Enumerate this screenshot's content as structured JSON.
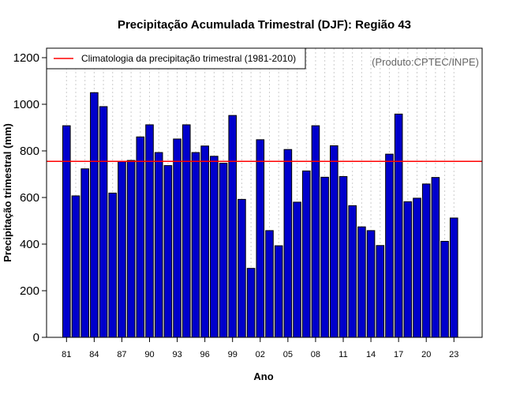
{
  "chart_data": {
    "type": "bar",
    "title": "Precipitação Acumulada Trimestral (DJF): Região 43",
    "xlabel": "Ano",
    "ylabel": "Precipitação trimestral (mm)",
    "ylim": [
      0,
      1260
    ],
    "yticks": [
      0,
      200,
      400,
      600,
      800,
      1000,
      1200
    ],
    "categories": [
      "81",
      "82",
      "83",
      "84",
      "85",
      "86",
      "87",
      "88",
      "89",
      "90",
      "91",
      "92",
      "93",
      "94",
      "95",
      "96",
      "97",
      "98",
      "99",
      "00",
      "01",
      "02",
      "03",
      "04",
      "05",
      "06",
      "07",
      "08",
      "09",
      "10",
      "11",
      "12",
      "13",
      "14",
      "15",
      "16",
      "17",
      "18",
      "19",
      "20",
      "21",
      "22",
      "23"
    ],
    "values": [
      908,
      607,
      723,
      1050,
      990,
      619,
      754,
      759,
      860,
      912,
      793,
      737,
      851,
      912,
      793,
      821,
      777,
      747,
      952,
      592,
      296,
      848,
      458,
      393,
      806,
      580,
      714,
      908,
      687,
      822,
      690,
      565,
      474,
      458,
      394,
      786,
      958,
      582,
      597,
      658,
      686,
      412,
      512
    ],
    "tick_labels": [
      "81",
      "84",
      "87",
      "90",
      "93",
      "96",
      "99",
      "02",
      "05",
      "08",
      "11",
      "14",
      "17",
      "20",
      "23"
    ],
    "reference_line": {
      "value": 755,
      "label": "Climatologia da precipitação trimestral (1981-2010)"
    },
    "legend": {
      "position": "top-left"
    },
    "grid": "vertical dotted",
    "credit": "(Produto:CPTEC/INPE)",
    "colors": {
      "bar_fill": "#0000cc",
      "bar_stroke": "#000000",
      "reference": "#ff0000",
      "grid": "#cccccc"
    }
  }
}
